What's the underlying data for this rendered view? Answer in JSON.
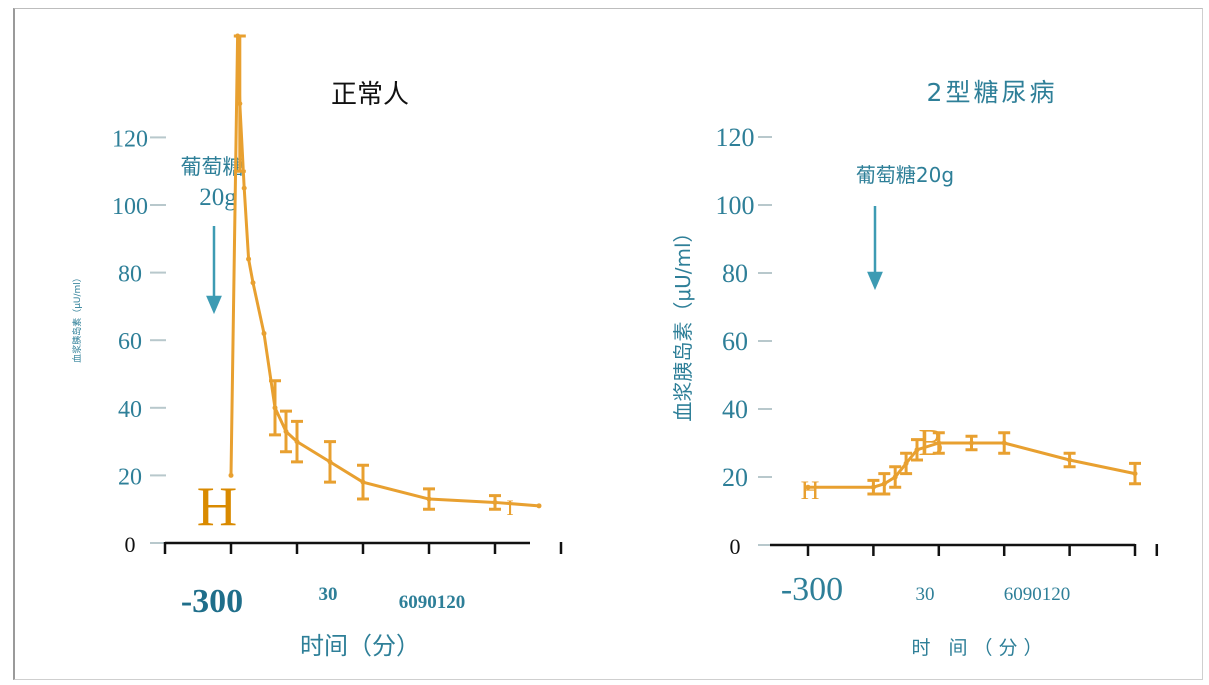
{
  "colors": {
    "series": "#E8A030",
    "axis": "#2E7F98",
    "text_dark": "#111111"
  },
  "chart_data": [
    {
      "type": "line",
      "title": "正常人",
      "stimulus_label": [
        "葡萄糖",
        "20g"
      ],
      "ylabel": "血浆胰岛素（μU/ml）",
      "xlabel": "时间（分）",
      "x_tick_text": [
        "-300",
        "30",
        "6090120"
      ],
      "ytick_labels": [
        "0",
        "20",
        "40",
        "60",
        "80",
        "100",
        "120"
      ],
      "ylim": [
        0,
        120
      ],
      "xlim": [
        -30,
        150
      ],
      "annotations": [
        "H",
        "I"
      ],
      "series": [
        {
          "x": [
            0,
            3,
            4,
            6,
            8,
            10,
            15,
            20,
            25,
            30,
            45,
            60,
            90,
            120,
            140
          ],
          "y": [
            20,
            150,
            130,
            105,
            84,
            77,
            62,
            40,
            33,
            30,
            24,
            18,
            13,
            12,
            11
          ],
          "err": [
            0,
            0,
            20,
            0,
            0,
            0,
            0,
            8,
            6,
            6,
            6,
            5,
            3,
            2,
            0
          ]
        }
      ]
    },
    {
      "type": "line",
      "title": "2型糖尿病",
      "stimulus_label": [
        "葡萄糖20g"
      ],
      "ylabel": "血浆胰岛素（μU/ml）",
      "xlabel": "时 间（分）",
      "x_tick_text": [
        "-300",
        "30",
        "6090120"
      ],
      "ytick_labels": [
        "0",
        "20",
        "40",
        "60",
        "80",
        "100",
        "120"
      ],
      "ylim": [
        0,
        120
      ],
      "xlim": [
        -30,
        130
      ],
      "annotations": [
        "H",
        "B"
      ],
      "series": [
        {
          "x": [
            -30,
            0,
            5,
            10,
            15,
            20,
            30,
            45,
            60,
            90,
            120
          ],
          "y": [
            17,
            17,
            18,
            20,
            24,
            28,
            30,
            30,
            30,
            25,
            21
          ],
          "err": [
            0,
            2,
            3,
            3,
            3,
            3,
            3,
            2,
            3,
            2,
            3
          ]
        }
      ]
    }
  ]
}
